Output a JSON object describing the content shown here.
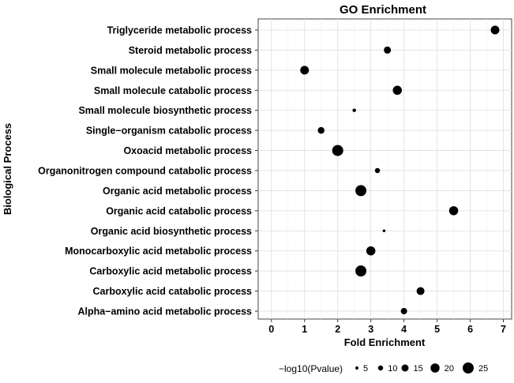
{
  "chart_data": {
    "type": "scatter",
    "title": "GO Enrichment",
    "xlabel": "Fold Enrichment",
    "ylabel": "Biological Process",
    "xlim": [
      -0.4,
      7.25
    ],
    "xticks": [
      0,
      1,
      2,
      3,
      4,
      5,
      6,
      7
    ],
    "grid": true,
    "legend_position": "bottom",
    "size_legend": {
      "title": "−log10(Pvalue)",
      "values": [
        5,
        10,
        15,
        20,
        25
      ]
    },
    "point_color": "#000000",
    "points": [
      {
        "category": "Triglyceride metabolic process",
        "x": 6.75,
        "size": 19
      },
      {
        "category": "Steroid metabolic process",
        "x": 3.5,
        "size": 15
      },
      {
        "category": "Small molecule metabolic process",
        "x": 1.0,
        "size": 19
      },
      {
        "category": "Small molecule catabolic process",
        "x": 3.8,
        "size": 20
      },
      {
        "category": "Small molecule biosynthetic process",
        "x": 2.5,
        "size": 6
      },
      {
        "category": "Single−organism catabolic process",
        "x": 1.5,
        "size": 14
      },
      {
        "category": "Oxoacid metabolic process",
        "x": 2.0,
        "size": 25
      },
      {
        "category": "Organonitrogen compound catabolic process",
        "x": 3.2,
        "size": 10
      },
      {
        "category": "Organic acid metabolic process",
        "x": 2.7,
        "size": 25
      },
      {
        "category": "Organic acid catabolic process",
        "x": 5.5,
        "size": 20
      },
      {
        "category": "Organic acid biosynthetic process",
        "x": 3.4,
        "size": 4
      },
      {
        "category": "Monocarboxylic acid metabolic process",
        "x": 3.0,
        "size": 20
      },
      {
        "category": "Carboxylic acid metabolic process",
        "x": 2.7,
        "size": 25
      },
      {
        "category": "Carboxylic acid catabolic process",
        "x": 4.5,
        "size": 17
      },
      {
        "category": "Alpha−amino acid metabolic process",
        "x": 4.0,
        "size": 13
      }
    ]
  }
}
